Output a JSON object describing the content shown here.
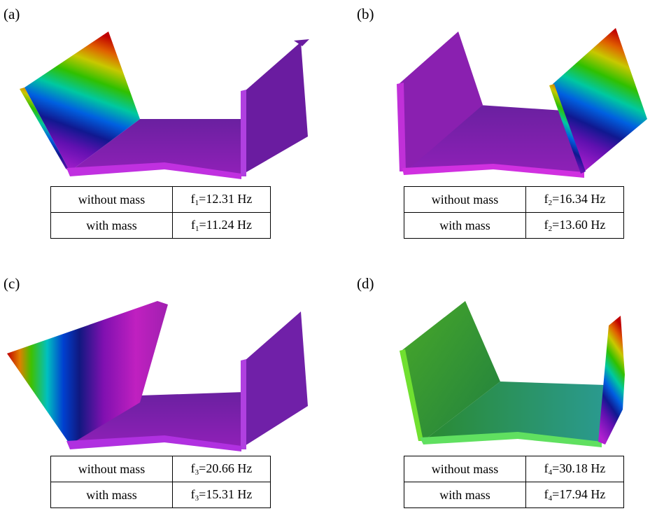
{
  "panels": [
    {
      "label": "(a)",
      "table": {
        "rows": [
          {
            "condition": "without mass",
            "frequency": {
              "symbol": "f",
              "subscript": "1",
              "value": "=12.31 Hz"
            }
          },
          {
            "condition": "with mass",
            "frequency": {
              "symbol": "f",
              "subscript": "1",
              "value": "=11.24 Hz"
            }
          }
        ]
      }
    },
    {
      "label": "(b)",
      "table": {
        "rows": [
          {
            "condition": "without mass",
            "frequency": {
              "symbol": "f",
              "subscript": "2",
              "value": "=16.34 Hz"
            }
          },
          {
            "condition": "with mass",
            "frequency": {
              "symbol": "f",
              "subscript": "2",
              "value": "=13.60 Hz"
            }
          }
        ]
      }
    },
    {
      "label": "(c)",
      "table": {
        "rows": [
          {
            "condition": "without mass",
            "frequency": {
              "symbol": "f",
              "subscript": "3",
              "value": "=20.66 Hz"
            }
          },
          {
            "condition": "with mass",
            "frequency": {
              "symbol": "f",
              "subscript": "3",
              "value": "=15.31 Hz"
            }
          }
        ]
      }
    },
    {
      "label": "(d)",
      "table": {
        "rows": [
          {
            "condition": "without mass",
            "frequency": {
              "symbol": "f",
              "subscript": "4",
              "value": "=30.18 Hz"
            }
          },
          {
            "condition": "with mass",
            "frequency": {
              "symbol": "f",
              "subscript": "4",
              "value": "=17.94 Hz"
            }
          }
        ]
      }
    }
  ]
}
